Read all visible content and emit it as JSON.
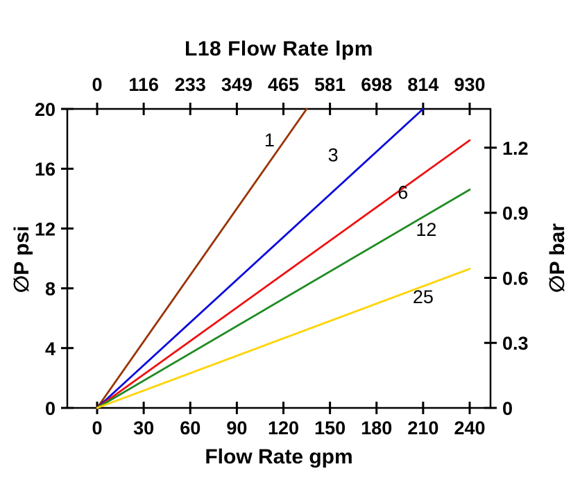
{
  "chart_data": {
    "type": "line",
    "title_top": "L18 Flow Rate lpm",
    "xlabel_bottom": "Flow Rate gpm",
    "ylabel_left": "∅P psi",
    "ylabel_right": "∅P bar",
    "axis_color": "#000000",
    "grid": false,
    "x_axis_bottom": {
      "unit": "gpm",
      "range": [
        0,
        240
      ],
      "ticks": [
        0,
        30,
        60,
        90,
        120,
        150,
        180,
        210,
        240
      ]
    },
    "x_axis_top": {
      "unit": "lpm",
      "tick_labels": [
        "0",
        "116",
        "233",
        "349",
        "465",
        "581",
        "698",
        "814",
        "930"
      ]
    },
    "y_axis_left": {
      "unit": "psi",
      "range": [
        0,
        20
      ],
      "ticks": [
        0,
        4,
        8,
        12,
        16,
        20
      ]
    },
    "y_axis_right": {
      "unit": "bar",
      "ticks": [
        0,
        0.3,
        0.6,
        0.9,
        1.2
      ],
      "bar_to_psi": 14.5038
    },
    "series": [
      {
        "name": "1",
        "color": "#993300",
        "points": [
          [
            0,
            0
          ],
          [
            135,
            20
          ]
        ],
        "label_pos": [
          111,
          17.5
        ]
      },
      {
        "name": "3",
        "color": "#0B0BDD",
        "points": [
          [
            0,
            0
          ],
          [
            210,
            20
          ]
        ],
        "label_pos": [
          152,
          16.5
        ]
      },
      {
        "name": "6",
        "color": "#EE1111",
        "points": [
          [
            0,
            0
          ],
          [
            240,
            17.9
          ]
        ],
        "label_pos": [
          197,
          14.0
        ]
      },
      {
        "name": "12",
        "color": "#1F8B22",
        "points": [
          [
            0,
            0
          ],
          [
            240,
            14.6
          ]
        ],
        "label_pos": [
          212,
          11.5
        ]
      },
      {
        "name": "25",
        "color": "#FFD300",
        "points": [
          [
            0,
            0
          ],
          [
            240,
            9.3
          ]
        ],
        "label_pos": [
          210,
          7.0
        ]
      }
    ]
  }
}
